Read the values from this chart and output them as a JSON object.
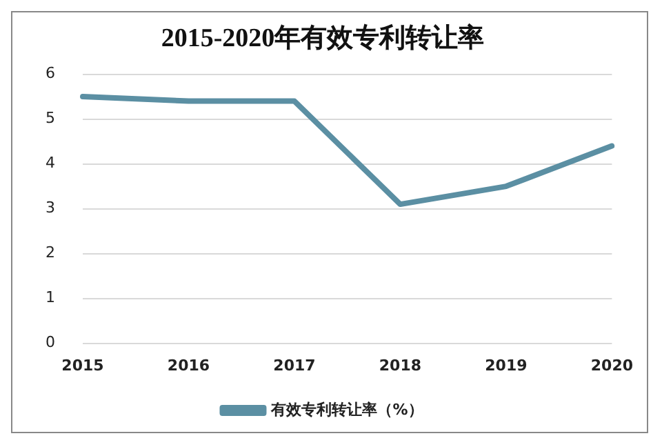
{
  "chart_data": {
    "type": "line",
    "title": "2015-2020年有效专利转让率",
    "categories": [
      "2015",
      "2016",
      "2017",
      "2018",
      "2019",
      "2020"
    ],
    "series": [
      {
        "name": "有效专利转让率（%）",
        "color": "#5b8fa3",
        "values": [
          5.5,
          5.4,
          5.4,
          3.1,
          3.5,
          4.4
        ]
      }
    ],
    "ylim": [
      0,
      6
    ],
    "yticks": [
      0,
      1,
      2,
      3,
      4,
      5,
      6
    ],
    "grid": "y",
    "legend": "bottom",
    "marker": "none",
    "line_style": "solid"
  }
}
